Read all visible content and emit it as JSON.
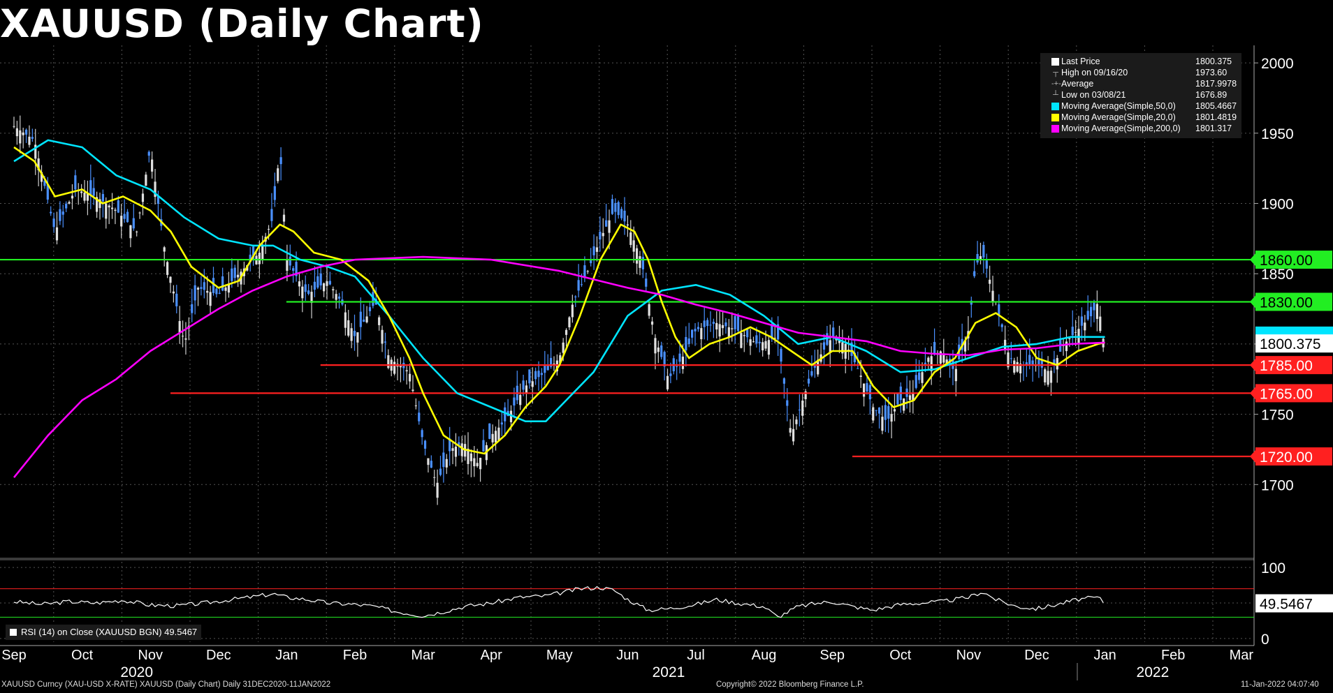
{
  "title": "XAUUSD (Daily Chart)",
  "legend": [
    {
      "label": "Last Price",
      "value": "1800.375",
      "color": "#ffffff",
      "kind": "box"
    },
    {
      "label": "High on 09/16/20",
      "value": "1973.60",
      "color": "#bbbbbb",
      "kind": "high"
    },
    {
      "label": "Average",
      "value": "1817.9978",
      "color": "#bbbbbb",
      "kind": "avg"
    },
    {
      "label": "Low on 03/08/21",
      "value": "1676.89",
      "color": "#bbbbbb",
      "kind": "low"
    },
    {
      "label": "Moving Average(Simple,50,0)",
      "value": "1805.4667",
      "color": "#00e5ff",
      "kind": "box"
    },
    {
      "label": "Moving Average(Simple,20,0)",
      "value": "1801.4819",
      "color": "#ffff00",
      "kind": "box"
    },
    {
      "label": "Moving Average(Simple,200,0)",
      "value": "1801.317",
      "color": "#ff00ff",
      "kind": "box"
    }
  ],
  "rsi_legend": "RSI (14)   on Close (XAUUSD BGN) 49.5467",
  "footer": {
    "left": "XAUUSD Curncy (XAU-USD X-RATE) XAUUSD (Daily Chart)   Daily 31DEC2020-11JAN2022",
    "center": "Copyright© 2022 Bloomberg Finance L.P.",
    "right": "11-Jan-2022 04:07:40"
  },
  "chart_data": {
    "type": "candlestick",
    "title": "XAUUSD (Daily Chart)",
    "price_axis": {
      "ticks": [
        1700,
        1750,
        1800,
        1850,
        1900,
        1950,
        2000
      ],
      "range": [
        1650,
        2010
      ]
    },
    "rsi_axis": {
      "ticks": [
        0,
        50,
        100
      ],
      "range": [
        -5,
        108
      ],
      "overbought": 70,
      "oversold": 30
    },
    "months": [
      "Sep",
      "Oct",
      "Nov",
      "Dec",
      "Jan",
      "Feb",
      "Mar",
      "Apr",
      "May",
      "Jun",
      "Jul",
      "Aug",
      "Sep",
      "Oct",
      "Nov",
      "Dec",
      "Jan",
      "Feb",
      "Mar"
    ],
    "years": [
      "2020",
      "2021",
      "2022"
    ],
    "horizontal_levels": [
      {
        "value": 1860,
        "label": "1860.00",
        "color": "#22ee22",
        "from_month": 0
      },
      {
        "value": 1830,
        "label": "1830.00",
        "color": "#22ee22",
        "from_month": 4.2
      },
      {
        "value": 1785,
        "label": "1785.00",
        "color": "#ff2020",
        "from_month": 4.7
      },
      {
        "value": 1765,
        "label": "1765.00",
        "color": "#ff2020",
        "from_month": 2.5
      },
      {
        "value": 1720,
        "label": "1720.00",
        "color": "#ff2020",
        "from_month": 12.5
      }
    ],
    "last_price": {
      "value": 1800.375,
      "label": "1800.375"
    },
    "ma50_tag": {
      "value": 1805.4667,
      "label": "1805.4667"
    },
    "rsi_last": {
      "value": 49.5467,
      "label": "49.5467"
    },
    "series": [
      {
        "name": "Last Price",
        "color": "#4a90ff",
        "points": [
          [
            0,
            1955
          ],
          [
            0.3,
            1945
          ],
          [
            0.6,
            1880
          ],
          [
            0.9,
            1910
          ],
          [
            1.2,
            1905
          ],
          [
            1.5,
            1895
          ],
          [
            1.8,
            1880
          ],
          [
            2.0,
            1940
          ],
          [
            2.2,
            1870
          ],
          [
            2.5,
            1800
          ],
          [
            2.7,
            1840
          ],
          [
            3.0,
            1835
          ],
          [
            3.3,
            1850
          ],
          [
            3.6,
            1865
          ],
          [
            3.8,
            1890
          ],
          [
            3.9,
            1940
          ],
          [
            4.0,
            1860
          ],
          [
            4.3,
            1835
          ],
          [
            4.6,
            1845
          ],
          [
            4.8,
            1830
          ],
          [
            5.0,
            1805
          ],
          [
            5.3,
            1830
          ],
          [
            5.5,
            1790
          ],
          [
            5.8,
            1780
          ],
          [
            6.0,
            1730
          ],
          [
            6.2,
            1700
          ],
          [
            6.4,
            1725
          ],
          [
            6.6,
            1730
          ],
          [
            6.8,
            1715
          ],
          [
            7.0,
            1735
          ],
          [
            7.2,
            1745
          ],
          [
            7.5,
            1770
          ],
          [
            7.8,
            1780
          ],
          [
            8.0,
            1790
          ],
          [
            8.2,
            1830
          ],
          [
            8.4,
            1850
          ],
          [
            8.6,
            1875
          ],
          [
            8.8,
            1895
          ],
          [
            9.0,
            1885
          ],
          [
            9.2,
            1860
          ],
          [
            9.4,
            1805
          ],
          [
            9.6,
            1775
          ],
          [
            9.8,
            1790
          ],
          [
            10.0,
            1810
          ],
          [
            10.3,
            1815
          ],
          [
            10.6,
            1810
          ],
          [
            10.9,
            1800
          ],
          [
            11.2,
            1805
          ],
          [
            11.4,
            1735
          ],
          [
            11.6,
            1765
          ],
          [
            11.8,
            1790
          ],
          [
            12.0,
            1805
          ],
          [
            12.2,
            1800
          ],
          [
            12.4,
            1780
          ],
          [
            12.6,
            1755
          ],
          [
            12.8,
            1745
          ],
          [
            13.0,
            1760
          ],
          [
            13.2,
            1765
          ],
          [
            13.4,
            1790
          ],
          [
            13.6,
            1795
          ],
          [
            13.8,
            1780
          ],
          [
            14.0,
            1810
          ],
          [
            14.1,
            1855
          ],
          [
            14.2,
            1865
          ],
          [
            14.4,
            1830
          ],
          [
            14.6,
            1790
          ],
          [
            14.8,
            1785
          ],
          [
            15.0,
            1785
          ],
          [
            15.2,
            1780
          ],
          [
            15.4,
            1800
          ],
          [
            15.6,
            1810
          ],
          [
            15.8,
            1820
          ],
          [
            15.9,
            1830
          ],
          [
            16.0,
            1795
          ]
        ]
      },
      {
        "name": "Moving Average(Simple,50,0)",
        "color": "#00e5ff",
        "points": [
          [
            0,
            1930
          ],
          [
            0.5,
            1945
          ],
          [
            1.0,
            1940
          ],
          [
            1.5,
            1920
          ],
          [
            2.0,
            1910
          ],
          [
            2.5,
            1890
          ],
          [
            3.0,
            1875
          ],
          [
            3.5,
            1870
          ],
          [
            3.8,
            1870
          ],
          [
            4.2,
            1860
          ],
          [
            4.6,
            1855
          ],
          [
            5.0,
            1848
          ],
          [
            5.5,
            1820
          ],
          [
            6.0,
            1790
          ],
          [
            6.5,
            1765
          ],
          [
            7.0,
            1755
          ],
          [
            7.5,
            1745
          ],
          [
            7.8,
            1745
          ],
          [
            8.0,
            1755
          ],
          [
            8.5,
            1780
          ],
          [
            9.0,
            1820
          ],
          [
            9.5,
            1838
          ],
          [
            10.0,
            1842
          ],
          [
            10.5,
            1835
          ],
          [
            11.0,
            1820
          ],
          [
            11.5,
            1800
          ],
          [
            12.0,
            1805
          ],
          [
            12.5,
            1795
          ],
          [
            13.0,
            1780
          ],
          [
            13.5,
            1782
          ],
          [
            14.0,
            1790
          ],
          [
            14.5,
            1798
          ],
          [
            15.0,
            1800
          ],
          [
            15.5,
            1805
          ],
          [
            16.0,
            1805
          ]
        ]
      },
      {
        "name": "Moving Average(Simple,20,0)",
        "color": "#ffff00",
        "points": [
          [
            0,
            1940
          ],
          [
            0.3,
            1930
          ],
          [
            0.6,
            1905
          ],
          [
            1.0,
            1910
          ],
          [
            1.3,
            1900
          ],
          [
            1.6,
            1905
          ],
          [
            2.0,
            1895
          ],
          [
            2.3,
            1880
          ],
          [
            2.6,
            1855
          ],
          [
            3.0,
            1840
          ],
          [
            3.3,
            1845
          ],
          [
            3.6,
            1870
          ],
          [
            3.9,
            1885
          ],
          [
            4.1,
            1880
          ],
          [
            4.4,
            1865
          ],
          [
            4.8,
            1860
          ],
          [
            5.2,
            1845
          ],
          [
            5.5,
            1820
          ],
          [
            5.8,
            1790
          ],
          [
            6.0,
            1765
          ],
          [
            6.3,
            1735
          ],
          [
            6.6,
            1725
          ],
          [
            6.9,
            1722
          ],
          [
            7.2,
            1735
          ],
          [
            7.5,
            1755
          ],
          [
            7.8,
            1770
          ],
          [
            8.0,
            1785
          ],
          [
            8.3,
            1820
          ],
          [
            8.6,
            1860
          ],
          [
            8.9,
            1885
          ],
          [
            9.1,
            1880
          ],
          [
            9.3,
            1860
          ],
          [
            9.5,
            1830
          ],
          [
            9.7,
            1805
          ],
          [
            9.9,
            1790
          ],
          [
            10.2,
            1800
          ],
          [
            10.5,
            1805
          ],
          [
            10.8,
            1812
          ],
          [
            11.1,
            1805
          ],
          [
            11.4,
            1795
          ],
          [
            11.7,
            1785
          ],
          [
            12.0,
            1795
          ],
          [
            12.3,
            1795
          ],
          [
            12.6,
            1770
          ],
          [
            12.9,
            1755
          ],
          [
            13.2,
            1760
          ],
          [
            13.5,
            1780
          ],
          [
            13.8,
            1790
          ],
          [
            14.1,
            1815
          ],
          [
            14.4,
            1822
          ],
          [
            14.7,
            1812
          ],
          [
            15.0,
            1790
          ],
          [
            15.3,
            1785
          ],
          [
            15.6,
            1795
          ],
          [
            15.9,
            1800
          ],
          [
            16.0,
            1801
          ]
        ]
      },
      {
        "name": "Moving Average(Simple,200,0)",
        "color": "#ff00ff",
        "points": [
          [
            0,
            1705
          ],
          [
            0.5,
            1735
          ],
          [
            1.0,
            1760
          ],
          [
            1.5,
            1775
          ],
          [
            2.0,
            1795
          ],
          [
            2.5,
            1810
          ],
          [
            3.0,
            1825
          ],
          [
            3.5,
            1838
          ],
          [
            4.0,
            1848
          ],
          [
            4.5,
            1855
          ],
          [
            5.0,
            1860
          ],
          [
            6.0,
            1862
          ],
          [
            7.0,
            1860
          ],
          [
            8.0,
            1852
          ],
          [
            9.0,
            1840
          ],
          [
            9.5,
            1835
          ],
          [
            10.0,
            1828
          ],
          [
            10.5,
            1822
          ],
          [
            11.0,
            1815
          ],
          [
            11.5,
            1808
          ],
          [
            12.0,
            1805
          ],
          [
            12.5,
            1802
          ],
          [
            13.0,
            1795
          ],
          [
            13.5,
            1793
          ],
          [
            14.0,
            1792
          ],
          [
            14.5,
            1796
          ],
          [
            15.0,
            1797
          ],
          [
            15.5,
            1800
          ],
          [
            16.0,
            1801
          ]
        ]
      },
      {
        "name": "RSI (14)",
        "color": "#ffffff",
        "points": [
          [
            0,
            52
          ],
          [
            0.4,
            48
          ],
          [
            0.8,
            52
          ],
          [
            1.2,
            50
          ],
          [
            1.6,
            54
          ],
          [
            2.0,
            47
          ],
          [
            2.4,
            46
          ],
          [
            2.8,
            50
          ],
          [
            3.2,
            55
          ],
          [
            3.6,
            60
          ],
          [
            3.8,
            63
          ],
          [
            4.0,
            58
          ],
          [
            4.3,
            55
          ],
          [
            4.6,
            50
          ],
          [
            5.0,
            48
          ],
          [
            5.3,
            45
          ],
          [
            5.6,
            38
          ],
          [
            6.0,
            32
          ],
          [
            6.3,
            38
          ],
          [
            6.6,
            45
          ],
          [
            7.0,
            50
          ],
          [
            7.4,
            58
          ],
          [
            7.8,
            60
          ],
          [
            8.0,
            64
          ],
          [
            8.3,
            70
          ],
          [
            8.6,
            72
          ],
          [
            8.8,
            68
          ],
          [
            9.0,
            55
          ],
          [
            9.3,
            40
          ],
          [
            9.6,
            42
          ],
          [
            10.0,
            48
          ],
          [
            10.3,
            55
          ],
          [
            10.6,
            50
          ],
          [
            11.0,
            45
          ],
          [
            11.2,
            30
          ],
          [
            11.5,
            45
          ],
          [
            11.8,
            50
          ],
          [
            12.0,
            52
          ],
          [
            12.3,
            45
          ],
          [
            12.6,
            40
          ],
          [
            13.0,
            48
          ],
          [
            13.3,
            50
          ],
          [
            13.6,
            52
          ],
          [
            14.0,
            58
          ],
          [
            14.2,
            66
          ],
          [
            14.4,
            55
          ],
          [
            14.7,
            45
          ],
          [
            15.0,
            42
          ],
          [
            15.3,
            48
          ],
          [
            15.6,
            55
          ],
          [
            15.9,
            58
          ],
          [
            16.0,
            49.5
          ]
        ]
      }
    ]
  }
}
